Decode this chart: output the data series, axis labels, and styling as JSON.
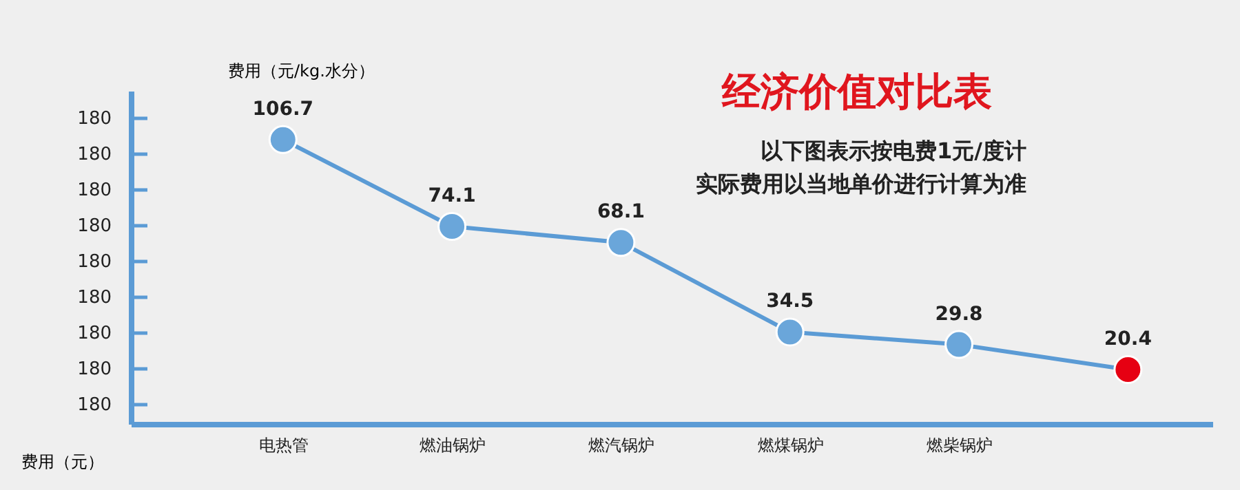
{
  "chart_data": {
    "type": "line",
    "title": "经济价值对比表",
    "subtitle": "以下图表示按电费1元/度计",
    "ylabel": "费用（元/kg.水分）",
    "xlabel": "费用（元）",
    "categories": [
      "电热管",
      "燃油锅炉",
      "燃汽锅炉",
      "燃煤锅炉",
      "燃柴锅炉",
      null
    ],
    "series": [
      {
        "color": "#5b9bd5",
        "values": [
          106.7,
          74.1,
          68.1,
          34.5,
          29.8,
          20.4
        ],
        "colors": [
          "#6aa6da",
          "#6aa6da",
          "#6aa6da",
          "#6aa6da",
          "#6aa6da",
          "#e60012"
        ]
      }
    ],
    "ylim": [
      0,
      125
    ],
    "annotations": [
      "实际费用以当地单价进行计算为准",
      "180",
      "180",
      "180",
      "180",
      "180",
      "180",
      "180",
      "180",
      "180"
    ],
    "data_labels": true,
    "marker": "circle",
    "line_style": "solid",
    "grid": false,
    "tick_labels": "x"
  }
}
